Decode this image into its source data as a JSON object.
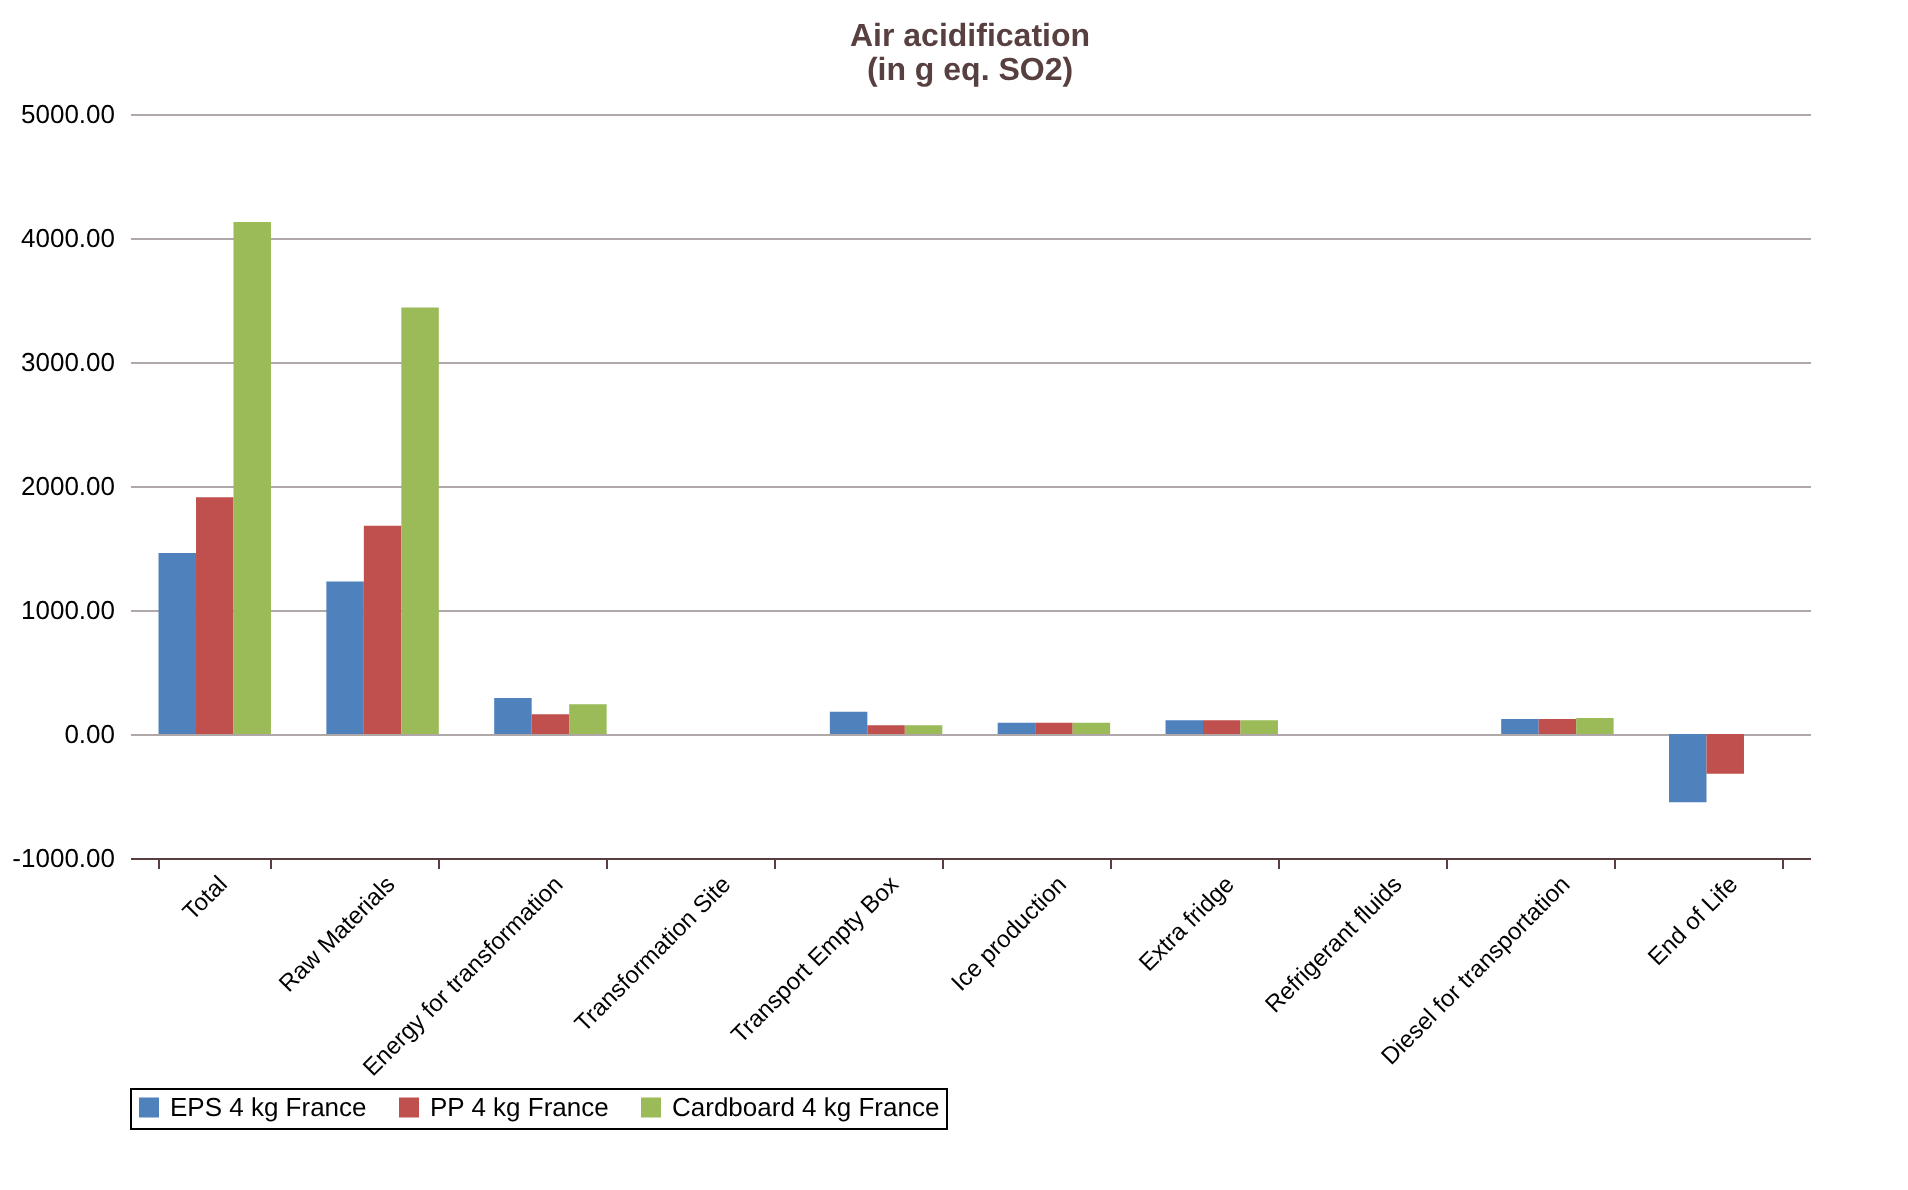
{
  "chart_data": {
    "type": "bar",
    "title": "Air acidification",
    "subtitle": "(in g eq. SO2)",
    "categories": [
      "Total",
      "Raw Materials",
      "Energy for transformation",
      "Transformation Site",
      "Transport Empty Box",
      "Ice production",
      "Extra fridge",
      "Refrigerant fluids",
      "Diesel for transportation",
      "End of Life"
    ],
    "series": [
      {
        "name": "EPS 4 kg France",
        "color": "#4f81bd",
        "values": [
          1460,
          1230,
          290,
          null,
          180,
          90,
          110,
          null,
          120,
          -550
        ]
      },
      {
        "name": "PP 4 kg France",
        "color": "#c0504d",
        "values": [
          1910,
          1680,
          160,
          null,
          70,
          90,
          110,
          null,
          120,
          -320
        ]
      },
      {
        "name": "Cardboard 4 kg France",
        "color": "#9bbb59",
        "values": [
          4130,
          3440,
          240,
          null,
          70,
          90,
          110,
          null,
          130,
          null
        ]
      }
    ],
    "ylim": [
      -1000,
      5000
    ],
    "yticks": [
      {
        "value": -1000,
        "label": "-1000.00"
      },
      {
        "value": 0,
        "label": "0.00"
      },
      {
        "value": 1000,
        "label": "1000.00"
      },
      {
        "value": 2000,
        "label": "2000.00"
      },
      {
        "value": 3000,
        "label": "3000.00"
      },
      {
        "value": 4000,
        "label": "4000.00"
      },
      {
        "value": 5000,
        "label": "5000.00"
      }
    ],
    "grid": "y",
    "legend": "bottom"
  }
}
